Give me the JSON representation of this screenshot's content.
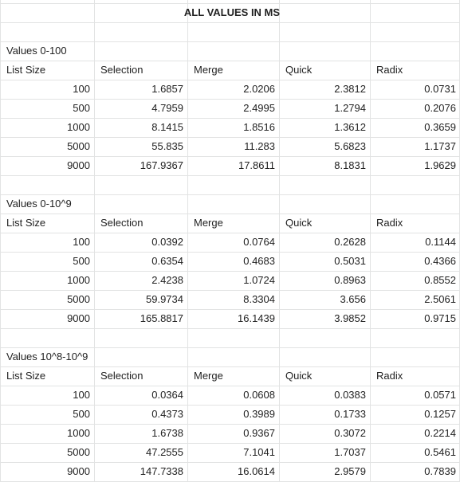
{
  "title": "ALL VALUES IN MS",
  "headers": [
    "List Size",
    "Selection",
    "Merge",
    "Quick",
    "Radix"
  ],
  "sections": [
    {
      "label": "Values 0-100",
      "rows": [
        [
          "100",
          "1.6857",
          "2.0206",
          "2.3812",
          "0.0731"
        ],
        [
          "500",
          "4.7959",
          "2.4995",
          "1.2794",
          "0.2076"
        ],
        [
          "1000",
          "8.1415",
          "1.8516",
          "1.3612",
          "0.3659"
        ],
        [
          "5000",
          "55.835",
          "11.283",
          "5.6823",
          "1.1737"
        ],
        [
          "9000",
          "167.9367",
          "17.8611",
          "8.1831",
          "1.9629"
        ]
      ]
    },
    {
      "label": "Values 0-10^9",
      "rows": [
        [
          "100",
          "0.0392",
          "0.0764",
          "0.2628",
          "0.1144"
        ],
        [
          "500",
          "0.6354",
          "0.4683",
          "0.5031",
          "0.4366"
        ],
        [
          "1000",
          "2.4238",
          "1.0724",
          "0.8963",
          "0.8552"
        ],
        [
          "5000",
          "59.9734",
          "8.3304",
          "3.656",
          "2.5061"
        ],
        [
          "9000",
          "165.8817",
          "16.1439",
          "3.9852",
          "0.9715"
        ]
      ]
    },
    {
      "label": "Values 10^8-10^9",
      "rows": [
        [
          "100",
          "0.0364",
          "0.0608",
          "0.0383",
          "0.0571"
        ],
        [
          "500",
          "0.4373",
          "0.3989",
          "0.1733",
          "0.1257"
        ],
        [
          "1000",
          "1.6738",
          "0.9367",
          "0.3072",
          "0.2214"
        ],
        [
          "5000",
          "47.2555",
          "7.1041",
          "1.7037",
          "0.5461"
        ],
        [
          "9000",
          "147.7338",
          "16.0614",
          "2.9579",
          "0.7839"
        ]
      ]
    }
  ]
}
